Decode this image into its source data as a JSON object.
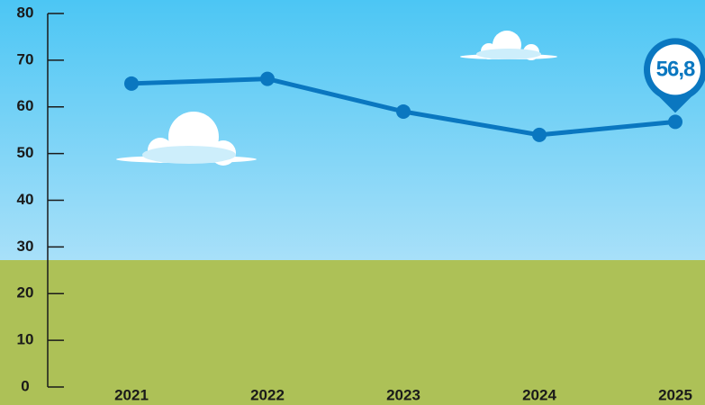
{
  "chart_data": {
    "type": "line",
    "categories": [
      "2021",
      "2022",
      "2023",
      "2024",
      "2025"
    ],
    "series": [
      {
        "color": "#0a77c0",
        "values": [
          65,
          66,
          59,
          54,
          56.8
        ],
        "value_labels": [
          null,
          null,
          null,
          null,
          "56,8"
        ]
      }
    ],
    "ylim": [
      0,
      80
    ],
    "yticks": [
      0,
      10,
      20,
      30,
      40,
      50,
      60,
      70,
      80
    ]
  }
}
